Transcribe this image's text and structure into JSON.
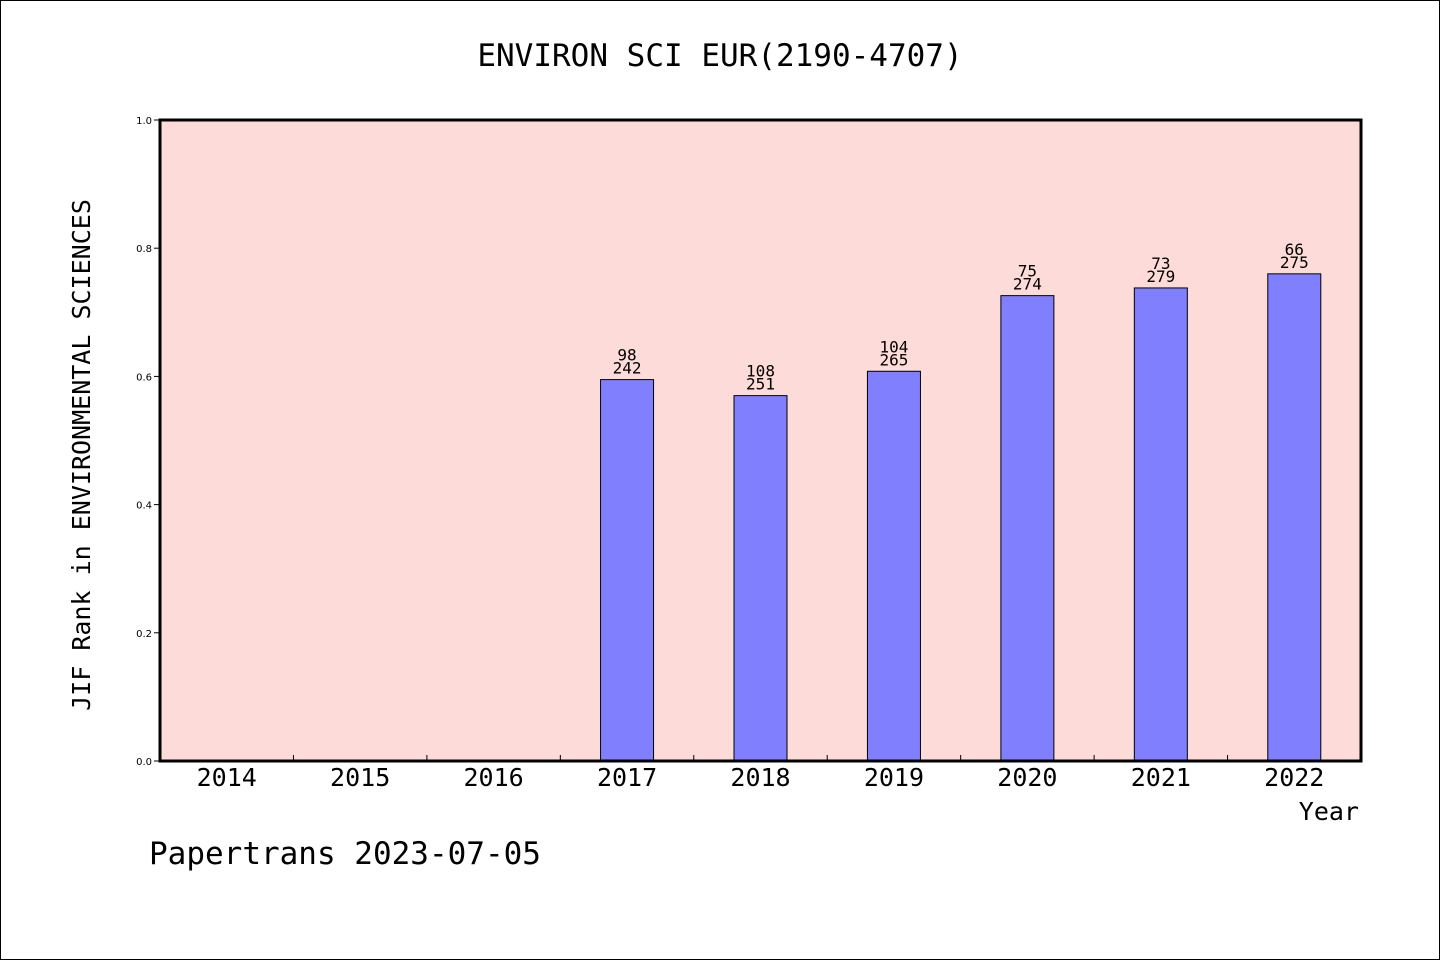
{
  "chart_data": {
    "type": "bar",
    "title": "ENVIRON SCI EUR(2190-4707)",
    "xlabel": "Year",
    "ylabel": "JIF Rank in ENVIRONMENTAL SCIENCES",
    "ylim": [
      0,
      1.0
    ],
    "yticks": [
      "0.0",
      "0.2",
      "0.4",
      "0.6",
      "0.8",
      "1.0"
    ],
    "categories": [
      "2014",
      "2015",
      "2016",
      "2017",
      "2018",
      "2019",
      "2020",
      "2021",
      "2022"
    ],
    "values": [
      null,
      null,
      null,
      0.595,
      0.57,
      0.608,
      0.726,
      0.738,
      0.76
    ],
    "ranks": [
      "",
      "",
      "",
      "98",
      "108",
      "104",
      "75",
      "73",
      "66"
    ],
    "totals": [
      "",
      "",
      "",
      "242",
      "251",
      "265",
      "274",
      "279",
      "275"
    ],
    "colors": {
      "plot_bg": "#fddbd8",
      "bar": "#8080ff",
      "bar_edge": "#000000"
    },
    "footer": "Papertrans 2023-07-05"
  }
}
